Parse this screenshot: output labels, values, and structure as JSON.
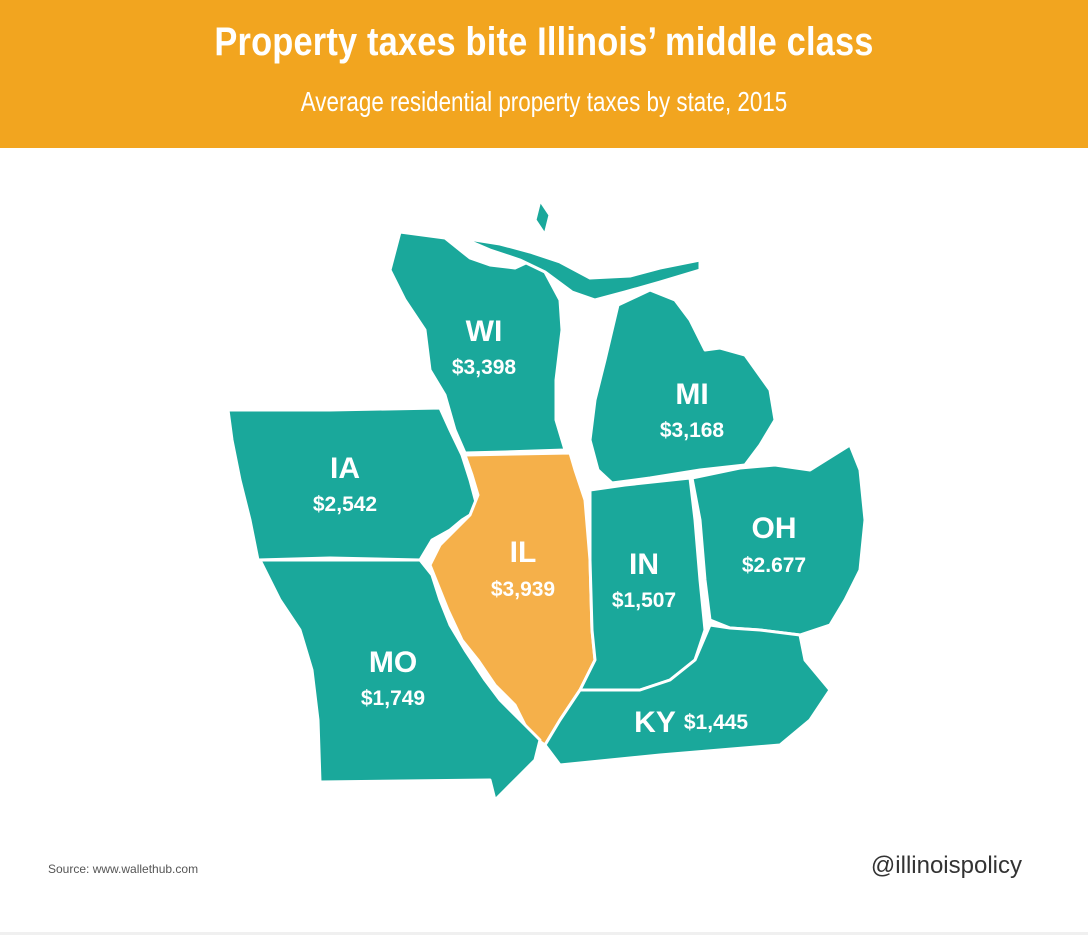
{
  "header": {
    "title": "Property taxes bite Illinois’ middle class",
    "subtitle": "Average residential property taxes by state, 2015"
  },
  "colors": {
    "header_bg": "#f2a51f",
    "state_default": "#1aa89b",
    "state_highlight": "#f5b04a",
    "border": "#ffffff"
  },
  "states": {
    "wi": {
      "code": "WI",
      "value": "$3,398"
    },
    "mi": {
      "code": "MI",
      "value": "$3,168"
    },
    "ia": {
      "code": "IA",
      "value": "$2,542"
    },
    "il": {
      "code": "IL",
      "value": "$3,939",
      "highlight": true
    },
    "in": {
      "code": "IN",
      "value": "$1,507"
    },
    "oh": {
      "code": "OH",
      "value": "$2.677"
    },
    "mo": {
      "code": "MO",
      "value": "$1,749"
    },
    "ky": {
      "code": "KY",
      "value": "$1,445"
    }
  },
  "footer": {
    "source": "Source: www.wallethub.com",
    "handle": "@illinoispolicy"
  }
}
